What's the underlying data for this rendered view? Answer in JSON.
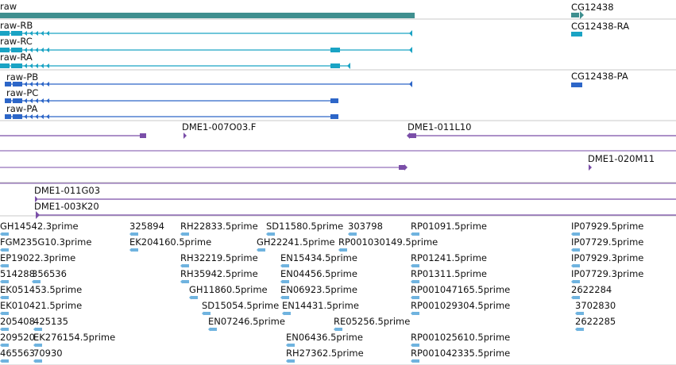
{
  "colors": {
    "gene": "#3f8f8f",
    "transcript": "#1aa3c4",
    "protein": "#2d66c8",
    "clone": "#7a4ea8",
    "est": "#6fb3df",
    "separator": "#c8c8c8"
  },
  "genes": [
    {
      "label": "raw",
      "color_key": "gene"
    },
    {
      "label": "CG12438",
      "color_key": "gene"
    }
  ],
  "transcripts": [
    {
      "label": "raw-RB"
    },
    {
      "label": "raw-RC"
    },
    {
      "label": "raw-RA"
    },
    {
      "label": "CG12438-RA"
    }
  ],
  "proteins": [
    {
      "label": "raw-PB"
    },
    {
      "label": "raw-PC"
    },
    {
      "label": "raw-PA"
    },
    {
      "label": "CG12438-PA"
    }
  ],
  "clones": [
    {
      "label": "DME1-007O03.F"
    },
    {
      "label": "DME1-011L10"
    },
    {
      "label": "DME1-020M11"
    },
    {
      "label": "DME1-011G03"
    },
    {
      "label": "DME1-003K20"
    }
  ],
  "ests": [
    "GH14542.3prime",
    "325894",
    "RH22833.5prime",
    "SD11580.5prime",
    "303798",
    "RP01091.5prime",
    "IP07929.5prime",
    "FGM235G10.3prime",
    "EK204160.5prime",
    "GH22241.5prime",
    "RP001030149.5prime",
    "IP07729.5prime",
    "EP19022.3prime",
    "RH32219.5prime",
    "EN15434.5prime",
    "RP01241.5prime",
    "IP07929.3prime",
    "514288",
    "356536",
    "RH35942.5prime",
    "EN04456.5prime",
    "RP01311.5prime",
    "IP07729.3prime",
    "EK051453.5prime",
    "GH11860.5prime",
    "EN06923.5prime",
    "RP001047165.5prime",
    "2622284",
    "EK010421.5prime",
    "SD15054.5prime",
    "EN14431.5prime",
    "RP001029304.5prime",
    "3702830",
    "205408",
    "425135",
    "EN07246.5prime",
    "RE05256.5prime",
    "2622285",
    "209520",
    "EK276154.5prime",
    "EN06436.5prime",
    "RP001025610.5prime",
    "465563",
    "70930",
    "RH27362.5prime",
    "RP001042335.5prime"
  ]
}
